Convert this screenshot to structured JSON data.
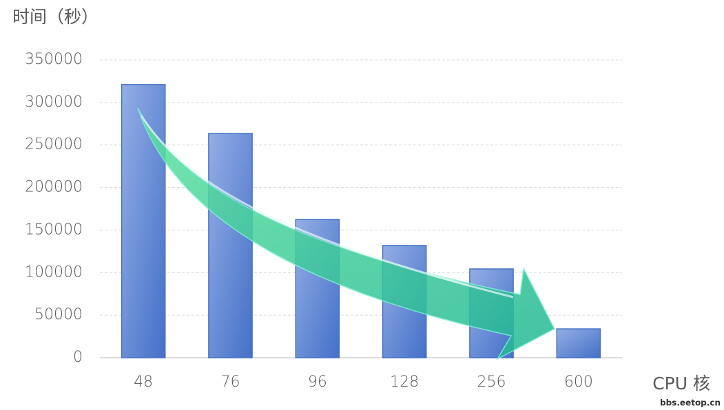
{
  "chart_data": {
    "type": "bar",
    "y_label": "时间（秒）",
    "x_label": "CPU 核",
    "watermark": "bbs.eetop.cn",
    "categories": [
      "48",
      "76",
      "96",
      "128",
      "256",
      "600"
    ],
    "values": [
      321000,
      263500,
      162500,
      131800,
      104300,
      33900
    ],
    "color": "#4472c4",
    "ylim": [
      0,
      350000
    ],
    "yticks": [
      0,
      50000,
      100000,
      150000,
      200000,
      250000,
      300000,
      350000
    ],
    "grid": true
  }
}
